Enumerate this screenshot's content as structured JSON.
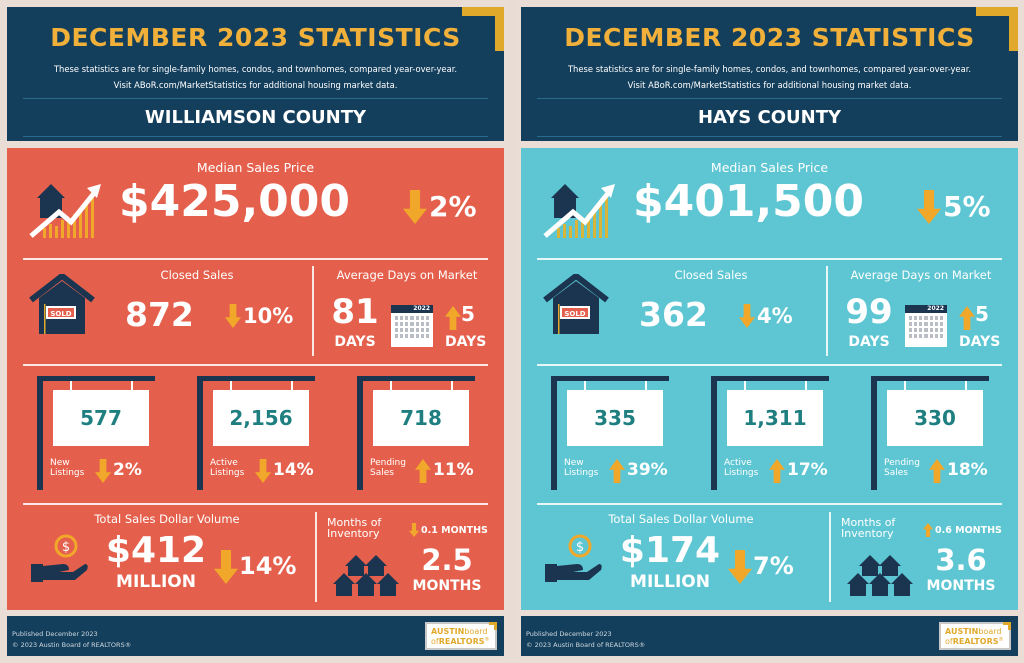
{
  "colors": {
    "navy": "#143f5c",
    "gold": "#e0a92c",
    "williamson_bg": "#e5604c",
    "hays_bg": "#5ec6d2",
    "arrow": "#f1a82a",
    "sign_text": "#1f7f80"
  },
  "panels": [
    {
      "header": {
        "title": "DECEMBER 2023 STATISTICS",
        "subtitle_1": "These statistics are for single-family homes, condos, and townhomes, compared year-over-year.",
        "subtitle_2": "Visit ABoR.com/MarketStatistics for additional housing market data.",
        "county": "WILLIAMSON COUNTY"
      },
      "median_price": {
        "label": "Median Sales Price",
        "value": "$425,000",
        "direction": "down",
        "change": "2%",
        "icon": "house-chart-icon"
      },
      "closed_sales": {
        "label": "Closed Sales",
        "value": "872",
        "direction": "down",
        "change": "10%",
        "icon": "sold-house-icon",
        "sign": "SOLD"
      },
      "days_on_market": {
        "label": "Average Days on Market",
        "value": "81",
        "unit": "DAYS",
        "calendar_year": "2022",
        "direction": "up",
        "change": "5",
        "change_unit": "DAYS"
      },
      "listings": [
        {
          "value": "577",
          "label_1": "New",
          "label_2": "Listings",
          "direction": "down",
          "change": "2%"
        },
        {
          "value": "2,156",
          "label_1": "Active",
          "label_2": "Listings",
          "direction": "down",
          "change": "14%"
        },
        {
          "value": "718",
          "label_1": "Pending",
          "label_2": "Sales",
          "direction": "up",
          "change": "11%"
        }
      ],
      "dollar_volume": {
        "label": "Total Sales Dollar Volume",
        "value": "$412",
        "unit": "MILLION",
        "direction": "down",
        "change": "14%",
        "coin": "$"
      },
      "inventory": {
        "label_1": "Months of",
        "label_2": "Inventory",
        "value": "2.5",
        "unit": "MONTHS",
        "direction": "down",
        "change": "0.1 MONTHS"
      },
      "footer": {
        "published": "Published December 2023",
        "copyright": "© 2023 Austin Board of REALTORS®",
        "logo_1a": "AUSTIN",
        "logo_1b": "board",
        "logo_2a": "of",
        "logo_2b": "REALTORS",
        "logo_mark": "®"
      }
    },
    {
      "header": {
        "title": "DECEMBER 2023 STATISTICS",
        "subtitle_1": "These statistics are for single-family homes, condos, and townhomes, compared year-over-year.",
        "subtitle_2": "Visit ABoR.com/MarketStatistics for additional housing market data.",
        "county": "HAYS COUNTY"
      },
      "median_price": {
        "label": "Median Sales Price",
        "value": "$401,500",
        "direction": "down",
        "change": "5%",
        "icon": "house-chart-icon"
      },
      "closed_sales": {
        "label": "Closed Sales",
        "value": "362",
        "direction": "down",
        "change": "4%",
        "icon": "sold-house-icon",
        "sign": "SOLD"
      },
      "days_on_market": {
        "label": "Average Days on Market",
        "value": "99",
        "unit": "DAYS",
        "calendar_year": "2022",
        "direction": "up",
        "change": "5",
        "change_unit": "DAYS"
      },
      "listings": [
        {
          "value": "335",
          "label_1": "New",
          "label_2": "Listings",
          "direction": "up",
          "change": "39%"
        },
        {
          "value": "1,311",
          "label_1": "Active",
          "label_2": "Listings",
          "direction": "up",
          "change": "17%"
        },
        {
          "value": "330",
          "label_1": "Pending",
          "label_2": "Sales",
          "direction": "up",
          "change": "18%"
        }
      ],
      "dollar_volume": {
        "label": "Total Sales Dollar Volume",
        "value": "$174",
        "unit": "MILLION",
        "direction": "down",
        "change": "7%",
        "coin": "$"
      },
      "inventory": {
        "label_1": "Months of",
        "label_2": "Inventory",
        "value": "3.6",
        "unit": "MONTHS",
        "direction": "up",
        "change": "0.6 MONTHS"
      },
      "footer": {
        "published": "Published December 2023",
        "copyright": "© 2023 Austin Board of REALTORS®",
        "logo_1a": "AUSTIN",
        "logo_1b": "board",
        "logo_2a": "of",
        "logo_2b": "REALTORS",
        "logo_mark": "®"
      }
    }
  ]
}
